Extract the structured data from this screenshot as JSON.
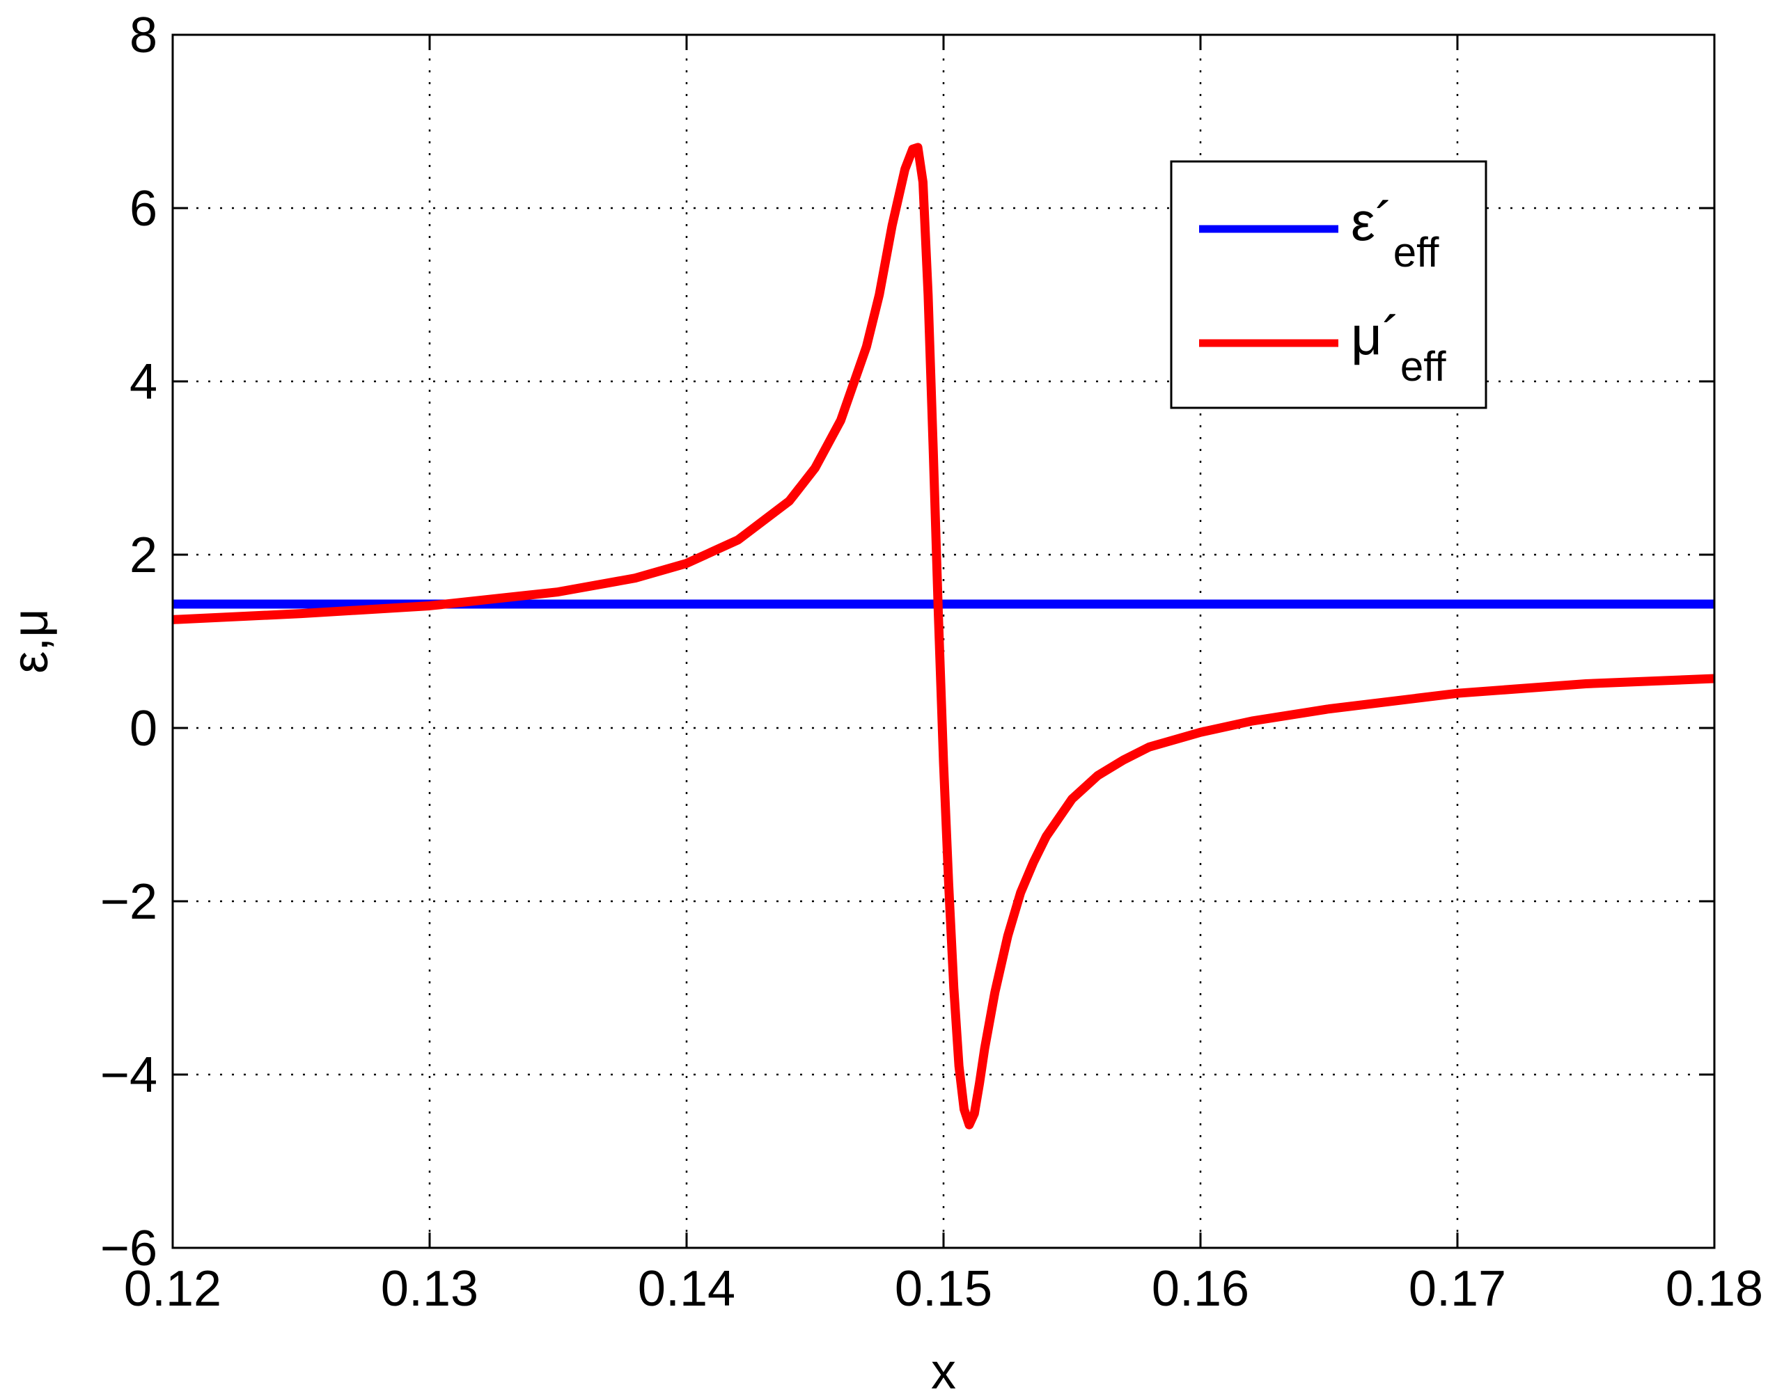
{
  "chart_data": {
    "type": "line",
    "title": "",
    "xlabel": "x",
    "ylabel": "ε,μ",
    "xlim": [
      0.12,
      0.18
    ],
    "ylim": [
      -6,
      8
    ],
    "xticks": [
      0.12,
      0.13,
      0.14,
      0.15,
      0.16,
      0.17,
      0.18
    ],
    "xtick_labels": [
      "0.12",
      "0.13",
      "0.14",
      "0.15",
      "0.16",
      "0.17",
      "0.18"
    ],
    "yticks": [
      -6,
      -4,
      -2,
      0,
      2,
      4,
      6,
      8
    ],
    "ytick_labels": [
      "−6",
      "−4",
      "−2",
      "0",
      "2",
      "4",
      "6",
      "8"
    ],
    "grid": true,
    "legend_position": "top-right",
    "series": [
      {
        "name": "ε´eff",
        "legend_main": "ε´",
        "legend_sub": "eff",
        "color": "#0000ff",
        "x": [
          0.12,
          0.18
        ],
        "y": [
          1.43,
          1.43
        ]
      },
      {
        "name": "μ´eff",
        "legend_main": "μ´",
        "legend_sub": "eff",
        "color": "#ff0000",
        "x": [
          0.12,
          0.125,
          0.13,
          0.135,
          0.138,
          0.14,
          0.142,
          0.144,
          0.145,
          0.146,
          0.147,
          0.1475,
          0.148,
          0.1485,
          0.1488,
          0.149,
          0.1492,
          0.1494,
          0.1496,
          0.1498,
          0.15,
          0.1502,
          0.1504,
          0.1506,
          0.1508,
          0.151,
          0.1512,
          0.1514,
          0.1516,
          0.152,
          0.1525,
          0.153,
          0.1535,
          0.154,
          0.155,
          0.156,
          0.157,
          0.158,
          0.16,
          0.162,
          0.165,
          0.17,
          0.175,
          0.18
        ],
        "y": [
          1.25,
          1.32,
          1.41,
          1.57,
          1.73,
          1.9,
          2.17,
          2.62,
          3.0,
          3.55,
          4.4,
          5.0,
          5.8,
          6.45,
          6.68,
          6.7,
          6.3,
          5.0,
          3.2,
          1.3,
          -0.4,
          -1.8,
          -3.0,
          -3.9,
          -4.4,
          -4.58,
          -4.45,
          -4.1,
          -3.7,
          -3.05,
          -2.4,
          -1.9,
          -1.55,
          -1.25,
          -0.82,
          -0.55,
          -0.37,
          -0.22,
          -0.05,
          0.08,
          0.22,
          0.4,
          0.51,
          0.57
        ]
      }
    ]
  }
}
